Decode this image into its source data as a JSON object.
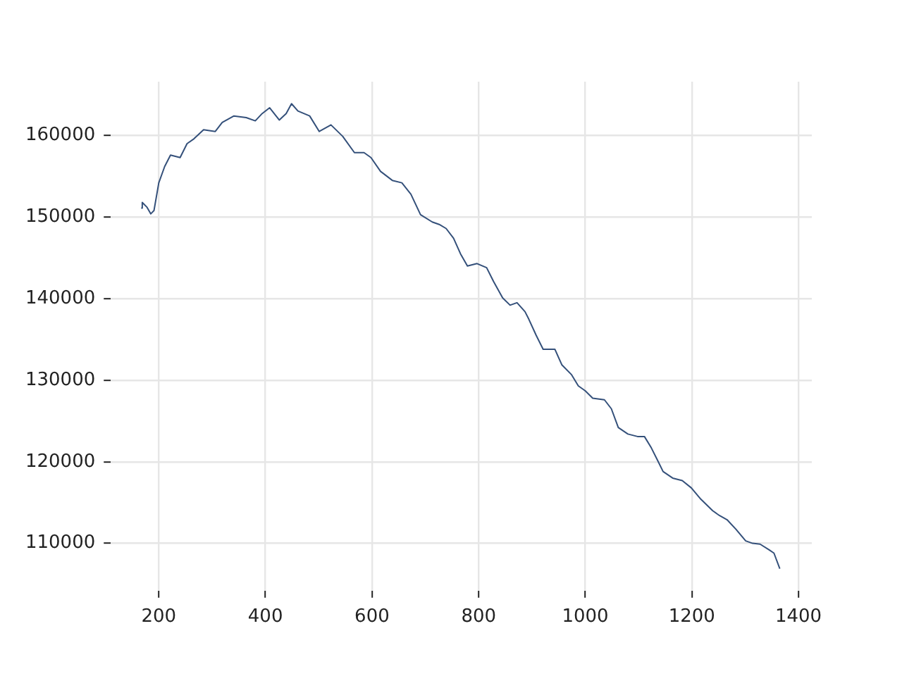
{
  "chart_data": {
    "type": "line",
    "x": [
      167,
      169,
      178,
      185,
      191,
      200,
      211,
      222,
      240,
      253,
      266,
      284,
      306,
      319,
      341,
      364,
      381,
      394,
      408,
      426,
      439,
      449,
      461,
      483,
      501,
      523,
      545,
      567,
      585,
      598,
      616,
      638,
      656,
      673,
      691,
      713,
      726,
      739,
      753,
      766,
      779,
      797,
      815,
      828,
      845,
      859,
      872,
      887,
      894,
      908,
      921,
      943,
      956,
      974,
      987,
      1000,
      1014,
      1036,
      1049,
      1062,
      1080,
      1098,
      1111,
      1124,
      1137,
      1146,
      1164,
      1182,
      1199,
      1217,
      1239,
      1252,
      1266,
      1283,
      1301,
      1314,
      1328,
      1345,
      1354,
      1365
    ],
    "series": [
      {
        "color": "#34507a",
        "values": [
          151100,
          151800,
          151200,
          150400,
          150800,
          154200,
          156200,
          157600,
          157300,
          159000,
          159600,
          160700,
          160500,
          161600,
          162400,
          162200,
          161800,
          162700,
          163400,
          161900,
          162700,
          163900,
          163000,
          162400,
          160500,
          161300,
          159900,
          157900,
          157900,
          157300,
          155600,
          154500,
          154200,
          152800,
          150300,
          149400,
          149100,
          148600,
          147400,
          145500,
          144000,
          144300,
          143800,
          142100,
          140100,
          139200,
          139500,
          138400,
          137500,
          135500,
          133800,
          133800,
          131900,
          130700,
          129300,
          128700,
          127800,
          127600,
          126500,
          124200,
          123400,
          123100,
          123100,
          121700,
          120000,
          118800,
          118000,
          117700,
          116800,
          115400,
          114000,
          113400,
          112900,
          111700,
          110300,
          110000,
          109900,
          109200,
          108800,
          106900
        ]
      }
    ],
    "xlim": [
      110,
      1425
    ],
    "xticks": [
      200,
      400,
      600,
      800,
      1000,
      1200,
      1400
    ],
    "ylim": [
      104200,
      166600
    ],
    "yticks": [
      110000,
      120000,
      130000,
      140000,
      150000,
      160000
    ],
    "grid": true,
    "legend": false,
    "marker": "none",
    "line_style": "solid"
  }
}
